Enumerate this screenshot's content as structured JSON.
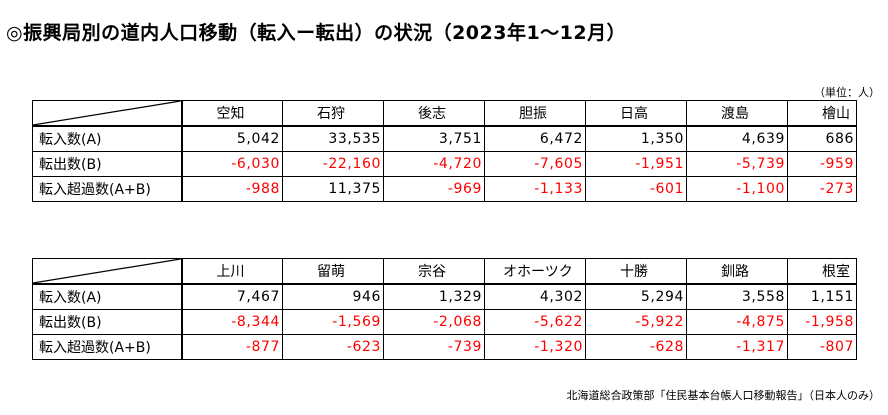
{
  "title": "◎振興局別の道内人口移動（転入ー転出）の状況（2023年1～12月）",
  "unit_note": "（単位：人）",
  "tables": [
    {
      "columns": [
        "空知",
        "石狩",
        "後志",
        "胆振",
        "日高",
        "渡島",
        "檜山"
      ],
      "rows": [
        {
          "label": "転入数(A)",
          "values": [
            "5,042",
            "33,535",
            "3,751",
            "6,472",
            "1,350",
            "4,639",
            "686"
          ],
          "negative": [
            false,
            false,
            false,
            false,
            false,
            false,
            false
          ]
        },
        {
          "label": "転出数(B)",
          "values": [
            "-6,030",
            "-22,160",
            "-4,720",
            "-7,605",
            "-1,951",
            "-5,739",
            "-959"
          ],
          "negative": [
            true,
            true,
            true,
            true,
            true,
            true,
            true
          ]
        },
        {
          "label": "転入超過数(A+B)",
          "values": [
            "-988",
            "11,375",
            "-969",
            "-1,133",
            "-601",
            "-1,100",
            "-273"
          ],
          "negative": [
            true,
            false,
            true,
            true,
            true,
            true,
            true
          ]
        }
      ]
    },
    {
      "columns": [
        "上川",
        "留萌",
        "宗谷",
        "オホーツク",
        "十勝",
        "釧路",
        "根室"
      ],
      "rows": [
        {
          "label": "転入数(A)",
          "values": [
            "7,467",
            "946",
            "1,329",
            "4,302",
            "5,294",
            "3,558",
            "1,151"
          ],
          "negative": [
            false,
            false,
            false,
            false,
            false,
            false,
            false
          ]
        },
        {
          "label": "転出数(B)",
          "values": [
            "-8,344",
            "-1,569",
            "-2,068",
            "-5,622",
            "-5,922",
            "-4,875",
            "-1,958"
          ],
          "negative": [
            true,
            true,
            true,
            true,
            true,
            true,
            true
          ]
        },
        {
          "label": "転入超過数(A+B)",
          "values": [
            "-877",
            "-623",
            "-739",
            "-1,320",
            "-628",
            "-1,317",
            "-807"
          ],
          "negative": [
            true,
            true,
            true,
            true,
            true,
            true,
            true
          ]
        }
      ]
    }
  ],
  "source": "北海道総合政策部「住民基本台帳人口移動報告」（日本人のみ）",
  "colors": {
    "negative": "#ff0000",
    "text": "#000000"
  }
}
